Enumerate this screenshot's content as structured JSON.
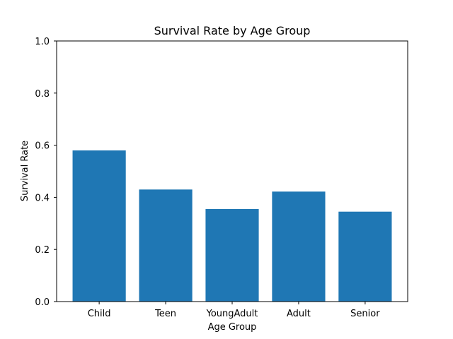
{
  "chart_data": {
    "type": "bar",
    "title": "Survival Rate by Age Group",
    "xlabel": "Age Group",
    "ylabel": "Survival Rate",
    "categories": [
      "Child",
      "Teen",
      "YoungAdult",
      "Adult",
      "Senior"
    ],
    "values": [
      0.58,
      0.43,
      0.355,
      0.422,
      0.345
    ],
    "ylim": [
      0,
      1.0
    ],
    "yticks": [
      "0.0",
      "0.2",
      "0.4",
      "0.6",
      "0.8",
      "1.0"
    ],
    "bar_color": "#1f77b4",
    "grid": false,
    "legend": "none"
  }
}
